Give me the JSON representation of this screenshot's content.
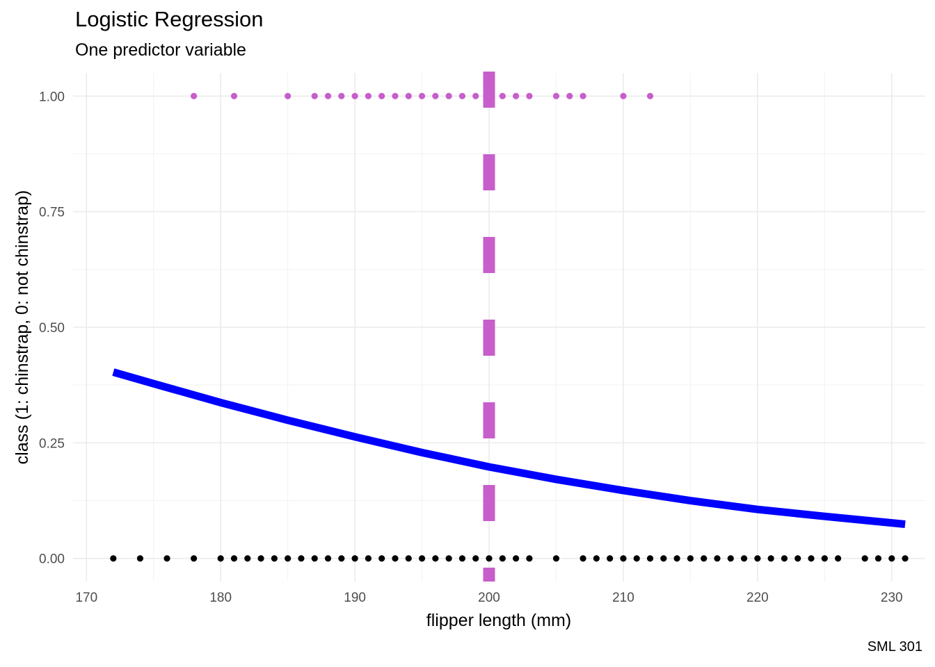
{
  "chart_data": {
    "type": "scatter",
    "title": "Logistic Regression",
    "subtitle": "One predictor variable",
    "caption": "SML 301",
    "xlabel": "flipper length (mm)",
    "ylabel": "class (1: chinstrap, 0: not chinstrap)",
    "xlim": [
      169,
      232.5
    ],
    "ylim": [
      -0.05,
      1.05
    ],
    "x_ticks": [
      170,
      180,
      190,
      200,
      210,
      220,
      230
    ],
    "y_ticks": [
      0,
      0.25,
      0.5,
      0.75,
      1
    ],
    "y_tick_labels": [
      "0.00",
      "0.25",
      "0.50",
      "0.75",
      "1.00"
    ],
    "grid": true,
    "series": [
      {
        "type": "scatter",
        "color": "#000000",
        "y": 0,
        "x": [
          172,
          174,
          176,
          178,
          180,
          181,
          182,
          183,
          184,
          185,
          186,
          187,
          188,
          189,
          190,
          191,
          192,
          193,
          194,
          195,
          196,
          197,
          198,
          199,
          200,
          201,
          202,
          203,
          205,
          207,
          208,
          209,
          210,
          211,
          212,
          213,
          214,
          215,
          216,
          217,
          218,
          219,
          220,
          221,
          222,
          223,
          224,
          225,
          226,
          228,
          229,
          230,
          231
        ]
      },
      {
        "type": "scatter",
        "color": "#c75ecb",
        "y": 1,
        "x": [
          178,
          181,
          185,
          187,
          188,
          189,
          190,
          191,
          192,
          193,
          194,
          195,
          196,
          197,
          198,
          199,
          200,
          201,
          202,
          203,
          205,
          206,
          207,
          210,
          212
        ]
      },
      {
        "type": "line",
        "color": "#0000ff",
        "x": [
          172,
          175,
          180,
          185,
          190,
          195,
          200,
          205,
          210,
          215,
          220,
          225,
          231
        ],
        "y": [
          0.403,
          0.378,
          0.337,
          0.299,
          0.263,
          0.229,
          0.198,
          0.171,
          0.147,
          0.125,
          0.106,
          0.091,
          0.074
        ]
      }
    ],
    "reference_line": {
      "orientation": "vertical",
      "x": 200,
      "style": "dashed",
      "color": "#c75ecb"
    }
  }
}
